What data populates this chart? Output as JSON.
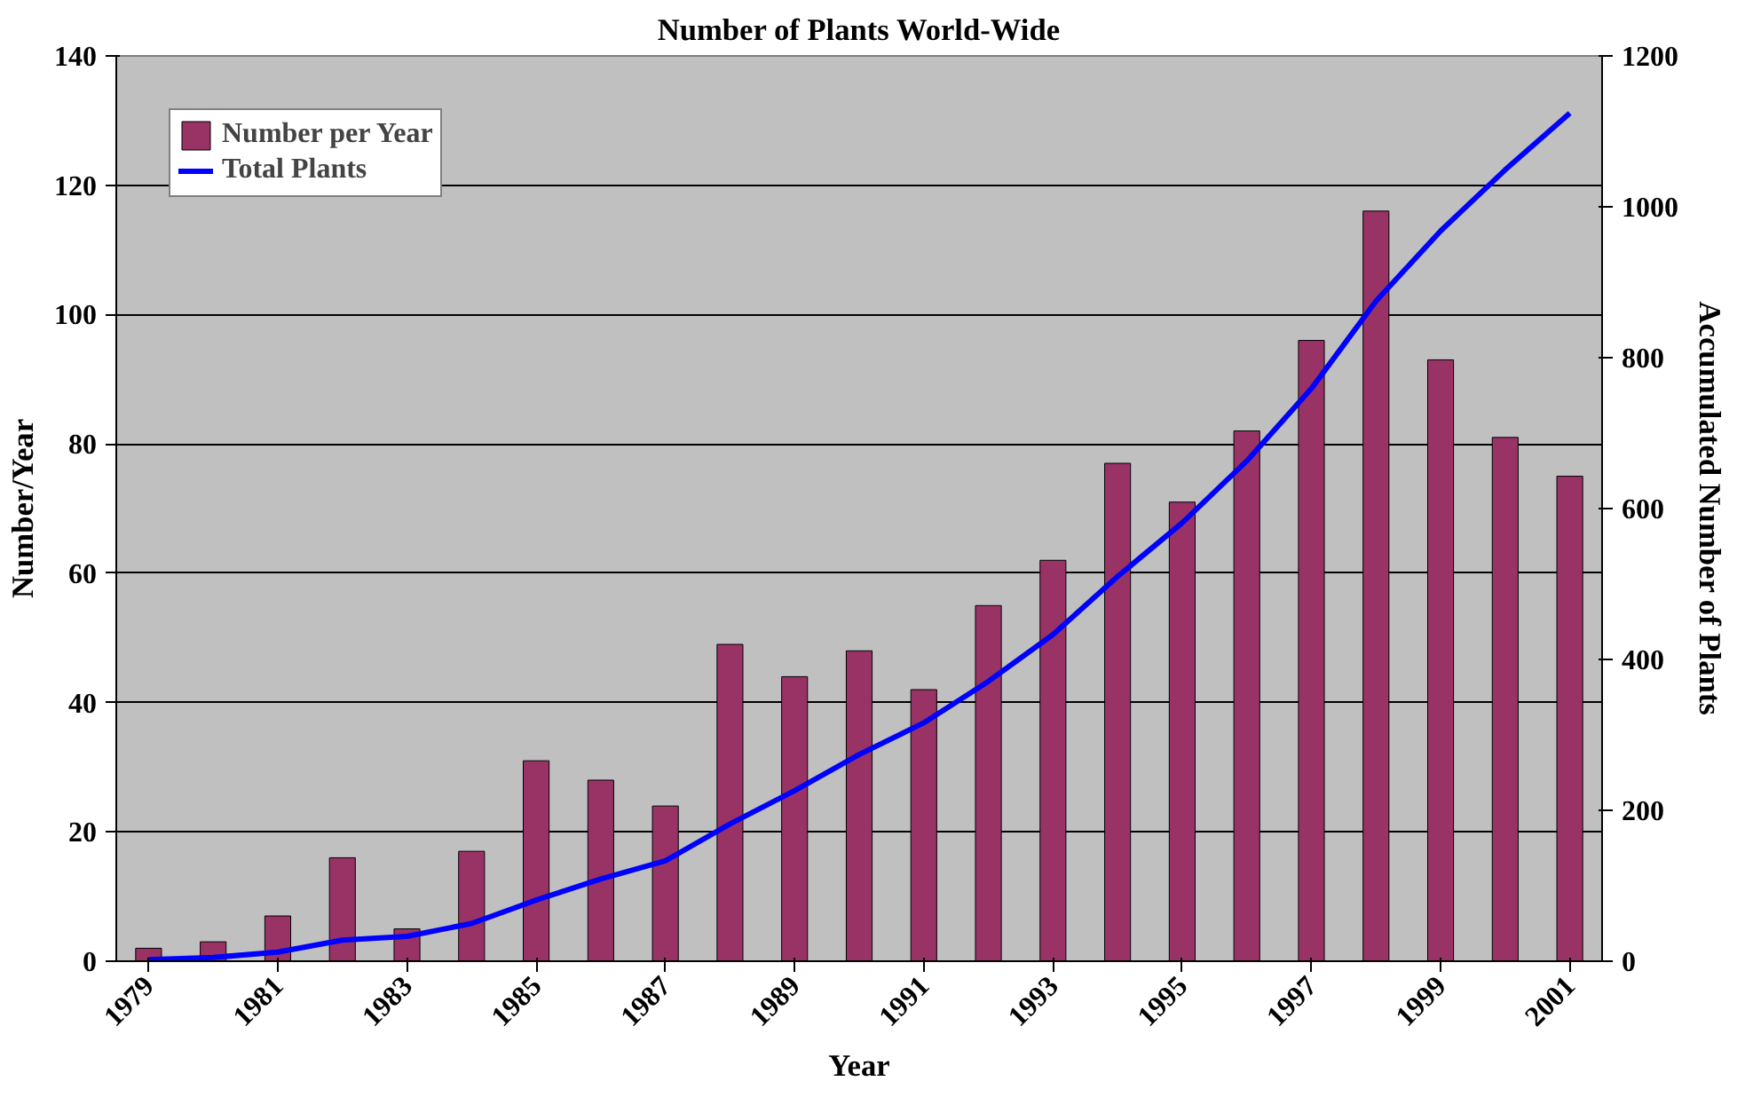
{
  "chart_data": {
    "type": "bar",
    "title": "Number of Plants World-Wide",
    "xlabel": "Year",
    "ylabel": "Number/Year",
    "y2label": "Accumulated Number of Plants",
    "categories": [
      "1979",
      null,
      "1981",
      null,
      "1983",
      null,
      "1985",
      null,
      "1987",
      null,
      "1989",
      null,
      "1991",
      null,
      "1993",
      null,
      "1995",
      null,
      "1997",
      null,
      "1999",
      null,
      "2001"
    ],
    "series": [
      {
        "name": "Number per Year",
        "color": "#993366",
        "values": [
          2,
          3,
          7,
          16,
          5,
          17,
          31,
          28,
          24,
          49,
          44,
          48,
          42,
          55,
          62,
          77,
          71,
          82,
          96,
          116,
          93,
          81,
          75
        ]
      },
      {
        "name": "Total Plants",
        "type": "line",
        "axis": "y2",
        "color": "#0000ff",
        "values": [
          2,
          5,
          12,
          28,
          33,
          50,
          81,
          109,
          133,
          182,
          226,
          274,
          316,
          371,
          433,
          510,
          581,
          663,
          759,
          875,
          968,
          1049,
          1124
        ]
      }
    ],
    "ylim": [
      0,
      140
    ],
    "yticks": [
      0,
      20,
      40,
      60,
      80,
      100,
      120,
      140
    ],
    "y2lim": [
      0,
      1200
    ],
    "y2ticks": [
      0,
      200,
      400,
      600,
      800,
      1000,
      1200
    ],
    "grid": "y",
    "legend": "top left",
    "line_style": "solid",
    "marker": "none"
  }
}
